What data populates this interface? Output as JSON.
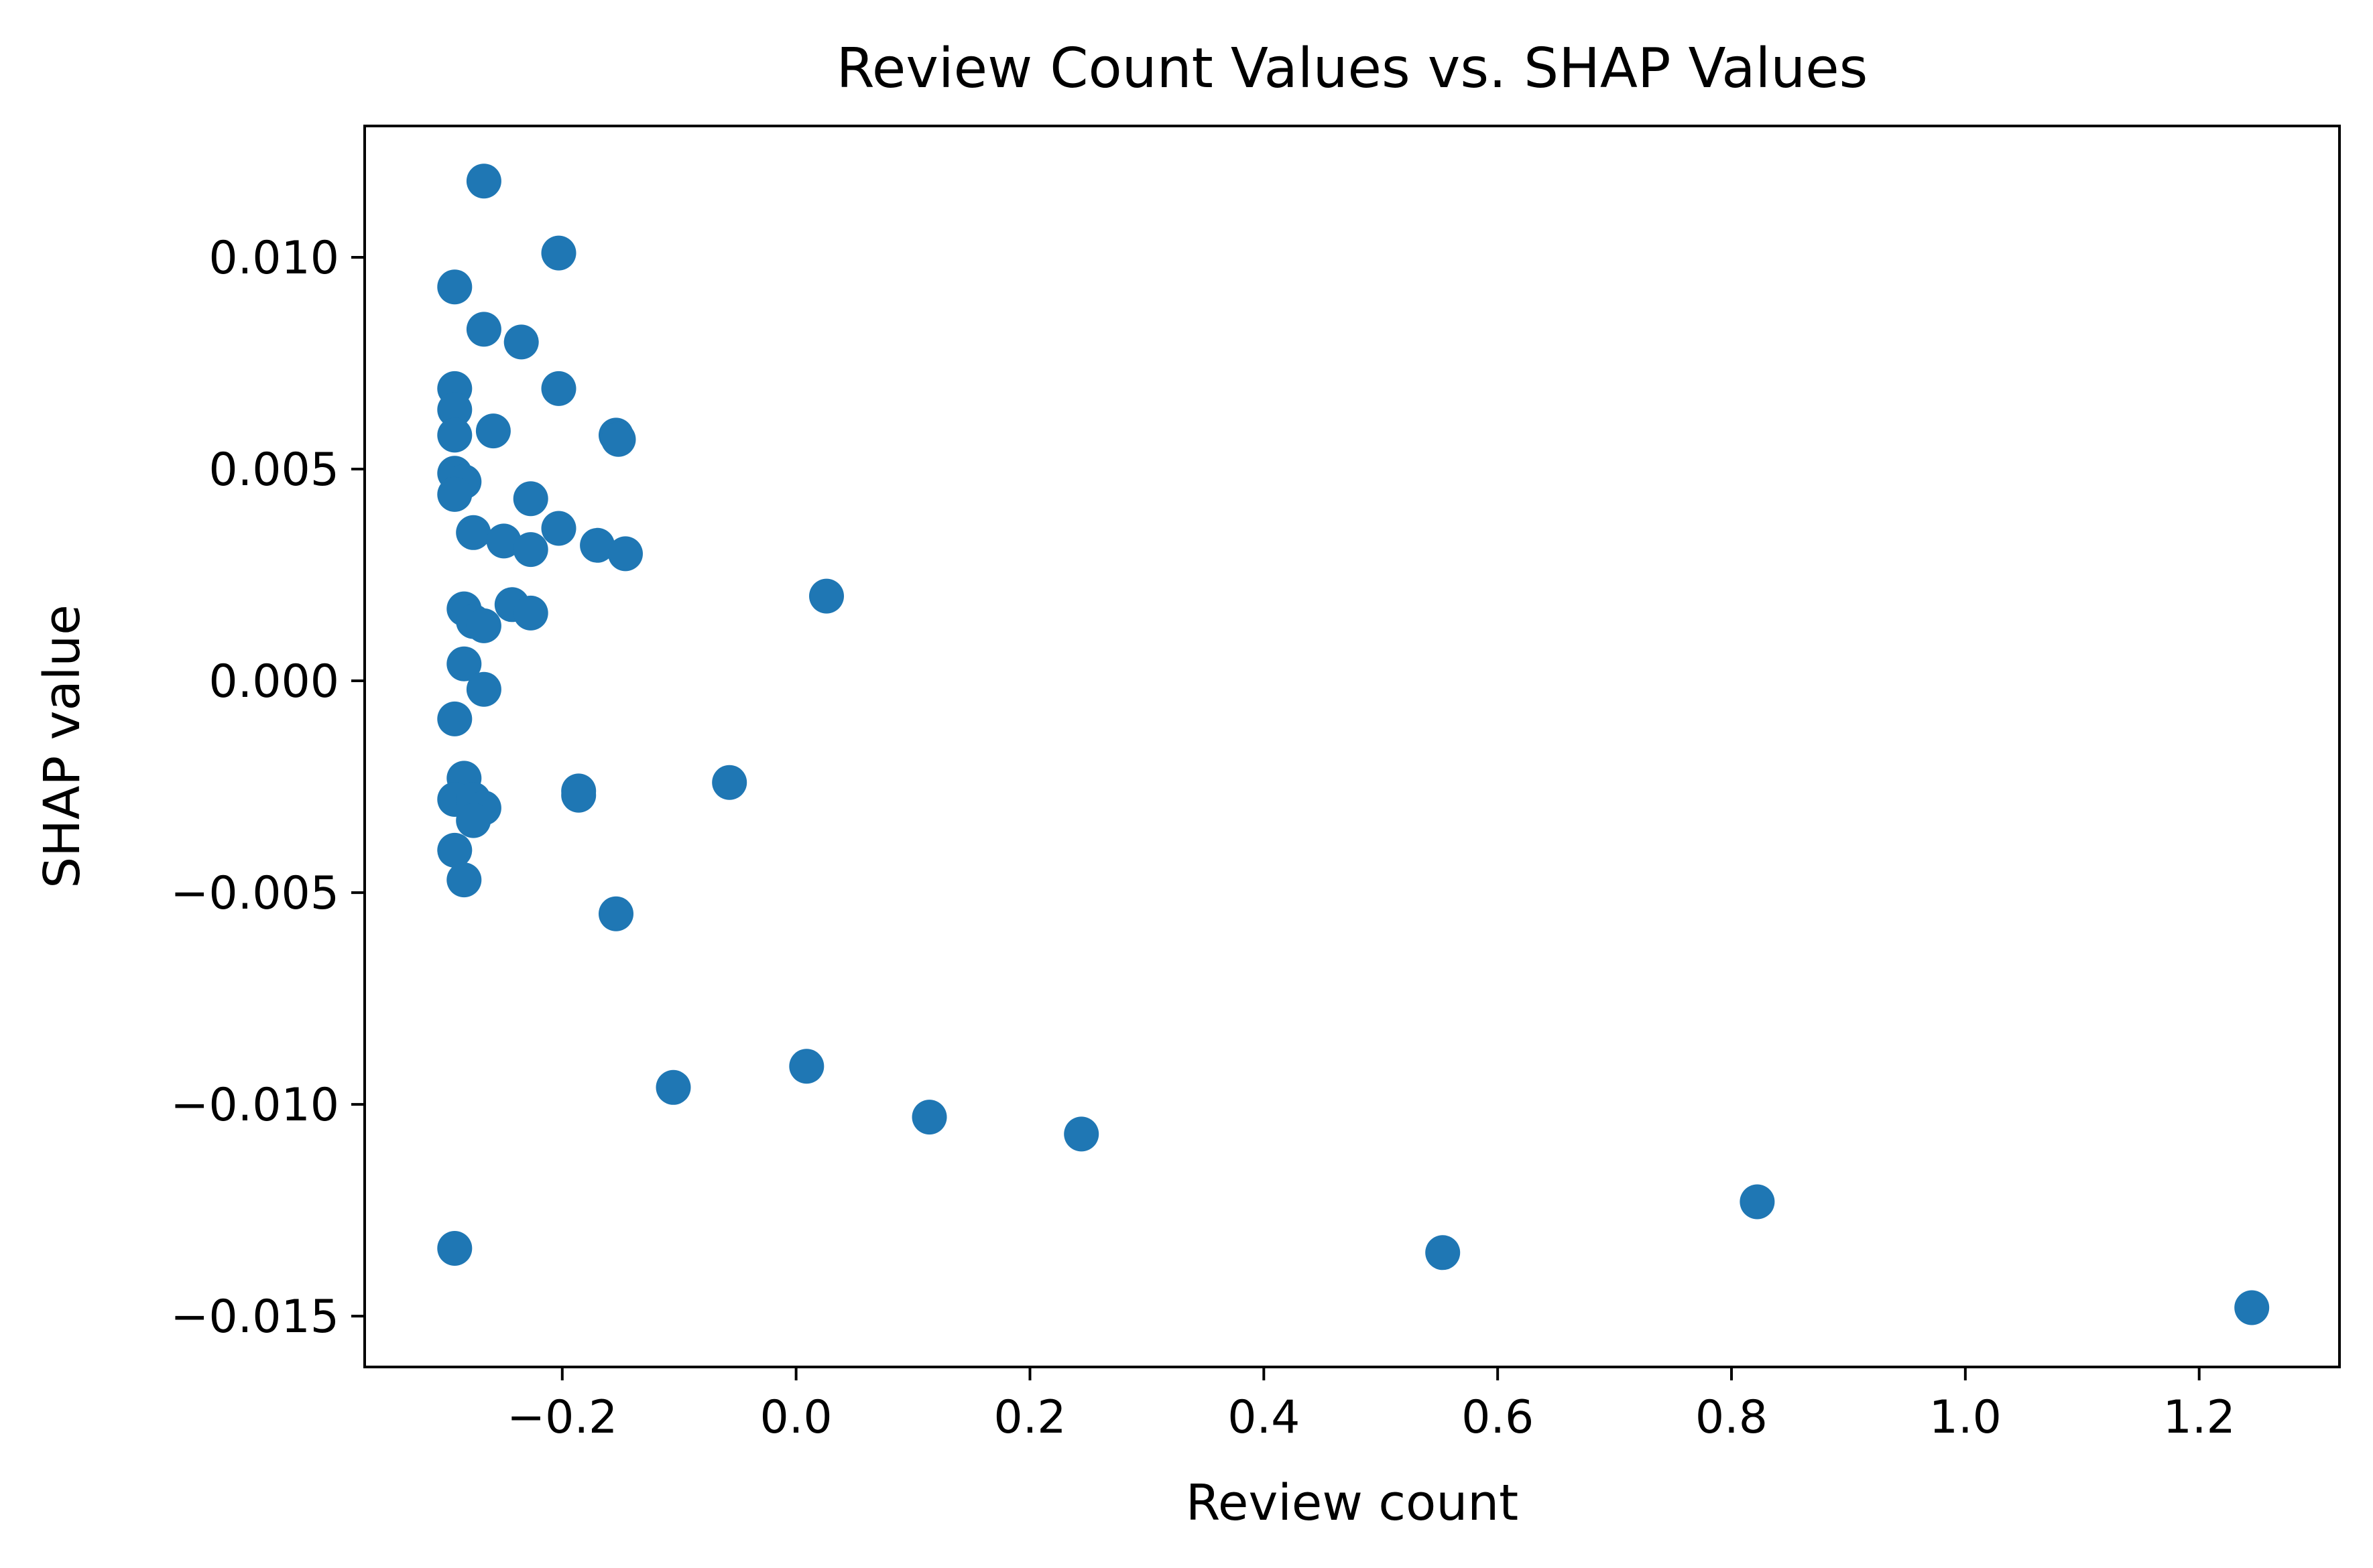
{
  "chart_data": {
    "type": "scatter",
    "title": "Review Count Values vs. SHAP Values",
    "xlabel": "Review count",
    "ylabel": "SHAP value",
    "xlim": [
      -0.369,
      1.32
    ],
    "ylim": [
      -0.0162,
      0.0131
    ],
    "x_ticks": [
      -0.2,
      0.0,
      0.2,
      0.4,
      0.6,
      0.8,
      1.0,
      1.2
    ],
    "x_tick_labels": [
      "−0.2",
      "0.0",
      "0.2",
      "0.4",
      "0.6",
      "0.8",
      "1.0",
      "1.2"
    ],
    "y_ticks": [
      -0.015,
      -0.01,
      -0.005,
      0.0,
      0.005,
      0.01
    ],
    "y_tick_labels": [
      "−0.015",
      "−0.010",
      "−0.005",
      "0.000",
      "0.005",
      "0.010"
    ],
    "grid": false,
    "color": "#1f77b4",
    "points": [
      [
        -0.267,
        0.0118
      ],
      [
        -0.203,
        0.0101
      ],
      [
        -0.292,
        0.0093
      ],
      [
        -0.267,
        0.0083
      ],
      [
        -0.235,
        0.008
      ],
      [
        -0.292,
        0.0069
      ],
      [
        -0.203,
        0.0069
      ],
      [
        -0.292,
        0.0064
      ],
      [
        -0.259,
        0.0059
      ],
      [
        -0.292,
        0.0058
      ],
      [
        -0.154,
        0.0058
      ],
      [
        -0.152,
        0.0057
      ],
      [
        -0.292,
        0.0049
      ],
      [
        -0.284,
        0.0047
      ],
      [
        -0.292,
        0.0044
      ],
      [
        -0.227,
        0.0043
      ],
      [
        -0.276,
        0.0035
      ],
      [
        -0.203,
        0.0036
      ],
      [
        -0.25,
        0.0033
      ],
      [
        -0.227,
        0.0031
      ],
      [
        -0.17,
        0.0032
      ],
      [
        -0.146,
        0.003
      ],
      [
        0.026,
        0.002
      ],
      [
        -0.284,
        0.0017
      ],
      [
        -0.243,
        0.0018
      ],
      [
        -0.227,
        0.0016
      ],
      [
        -0.276,
        0.0014
      ],
      [
        -0.267,
        0.0013
      ],
      [
        -0.284,
        0.0004
      ],
      [
        -0.267,
        -0.0002
      ],
      [
        -0.292,
        -0.0009
      ],
      [
        -0.284,
        -0.0023
      ],
      [
        -0.292,
        -0.0028
      ],
      [
        -0.276,
        -0.0028
      ],
      [
        -0.267,
        -0.003
      ],
      [
        -0.276,
        -0.0033
      ],
      [
        -0.186,
        -0.0026
      ],
      [
        -0.186,
        -0.0027
      ],
      [
        -0.057,
        -0.0024
      ],
      [
        -0.292,
        -0.004
      ],
      [
        -0.284,
        -0.0047
      ],
      [
        -0.154,
        -0.0055
      ],
      [
        -0.105,
        -0.0096
      ],
      [
        0.009,
        -0.0091
      ],
      [
        0.114,
        -0.0103
      ],
      [
        0.244,
        -0.0107
      ],
      [
        -0.292,
        -0.0134
      ],
      [
        0.553,
        -0.0135
      ],
      [
        0.822,
        -0.0123
      ],
      [
        1.245,
        -0.0148
      ]
    ]
  }
}
